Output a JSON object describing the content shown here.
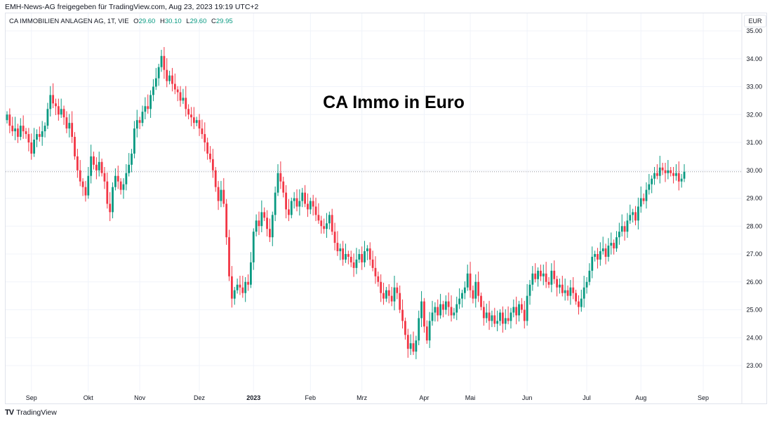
{
  "header": {
    "attribution": "EMH-News-AG freigegeben für TradingView.com, Aug 23, 2023 19:19 UTC+2"
  },
  "legend": {
    "symbol": "CA IMMOBILIEN ANLAGEN AG, 1T, VIE",
    "o_label": "O",
    "o": "29.60",
    "h_label": "H",
    "h": "30.10",
    "l_label": "L",
    "l": "29.60",
    "c_label": "C",
    "c": "29.95"
  },
  "currency": "EUR",
  "footer": {
    "brand": "TradingView",
    "logo": "17"
  },
  "colors": {
    "up": "#089981",
    "down": "#f23645",
    "grid": "#f0f3fa"
  },
  "chart_data": {
    "type": "candlestick",
    "title": "CA Immo in Euro",
    "xlabel": "",
    "ylabel": "",
    "ylim": [
      22,
      35.6
    ],
    "yticks": [
      "23.00",
      "24.00",
      "25.00",
      "26.00",
      "27.00",
      "28.00",
      "29.00",
      "30.00",
      "31.00",
      "32.00",
      "33.00",
      "34.00",
      "35.00"
    ],
    "xticks": [
      {
        "label": "Sep",
        "index": 9
      },
      {
        "label": "Okt",
        "index": 30
      },
      {
        "label": "Nov",
        "index": 49
      },
      {
        "label": "Dez",
        "index": 71
      },
      {
        "label": "2023",
        "index": 91,
        "bold": true
      },
      {
        "label": "Feb",
        "index": 112
      },
      {
        "label": "Mrz",
        "index": 131
      },
      {
        "label": "Apr",
        "index": 154
      },
      {
        "label": "Mai",
        "index": 171
      },
      {
        "label": "Jun",
        "index": 192
      },
      {
        "label": "Jul",
        "index": 214
      },
      {
        "label": "Aug",
        "index": 234
      },
      {
        "label": "Sep",
        "index": 257
      }
    ],
    "last_price": 29.95,
    "first_open": 31.8,
    "closes": [
      32.0,
      31.6,
      31.4,
      31.5,
      31.2,
      31.6,
      31.4,
      31.3,
      31.0,
      30.6,
      31.1,
      31.3,
      31.2,
      31.4,
      31.6,
      32.2,
      32.7,
      32.4,
      32.3,
      32.0,
      32.2,
      31.9,
      31.5,
      31.7,
      31.2,
      30.5,
      30.0,
      29.6,
      29.4,
      29.1,
      29.8,
      30.5,
      30.2,
      30.0,
      30.3,
      29.9,
      29.6,
      28.8,
      28.5,
      29.4,
      29.8,
      29.6,
      29.3,
      29.5,
      29.9,
      30.2,
      30.6,
      31.5,
      31.8,
      31.7,
      32.1,
      32.3,
      32.2,
      32.7,
      33.0,
      33.3,
      33.7,
      34.1,
      33.6,
      33.2,
      33.4,
      33.1,
      32.9,
      32.8,
      32.5,
      32.6,
      32.2,
      32.0,
      31.9,
      31.7,
      31.8,
      31.5,
      31.3,
      31.0,
      30.6,
      30.4,
      30.0,
      29.4,
      28.9,
      29.3,
      28.8,
      27.6,
      26.2,
      25.4,
      25.7,
      25.9,
      25.8,
      25.6,
      26.0,
      25.9,
      26.7,
      27.8,
      28.2,
      28.0,
      28.5,
      28.3,
      27.9,
      27.6,
      28.4,
      29.2,
      29.9,
      29.6,
      29.2,
      28.6,
      28.4,
      28.9,
      29.0,
      28.7,
      28.9,
      29.2,
      28.8,
      28.6,
      28.9,
      28.7,
      28.4,
      28.2,
      28.0,
      27.9,
      28.1,
      28.4,
      27.8,
      27.4,
      27.1,
      27.2,
      26.8,
      27.0,
      26.9,
      26.7,
      26.5,
      26.8,
      27.0,
      26.7,
      27.1,
      27.2,
      26.8,
      26.5,
      26.2,
      26.0,
      25.6,
      25.4,
      25.7,
      25.5,
      25.3,
      25.8,
      25.6,
      25.0,
      24.6,
      24.1,
      23.6,
      23.8,
      23.5,
      23.9,
      24.7,
      25.3,
      24.4,
      23.9,
      24.6,
      24.9,
      25.1,
      24.8,
      25.2,
      25.0,
      25.3,
      25.1,
      24.8,
      24.9,
      25.2,
      25.4,
      25.6,
      25.8,
      26.3,
      25.7,
      25.4,
      26.0,
      25.5,
      25.1,
      24.7,
      24.9,
      24.6,
      24.8,
      24.5,
      24.6,
      24.9,
      24.5,
      24.7,
      24.6,
      24.9,
      25.1,
      24.8,
      25.2,
      25.0,
      24.6,
      25.5,
      25.9,
      26.3,
      26.1,
      26.4,
      26.2,
      26.3,
      26.0,
      25.9,
      26.4,
      26.1,
      25.8,
      25.9,
      25.6,
      25.7,
      25.5,
      25.8,
      25.6,
      25.3,
      25.1,
      25.4,
      25.8,
      26.0,
      26.4,
      26.9,
      27.0,
      26.8,
      27.1,
      27.2,
      26.9,
      27.3,
      27.4,
      27.2,
      27.6,
      27.8,
      28.0,
      27.8,
      28.2,
      28.4,
      28.5,
      28.2,
      28.7,
      29.0,
      28.9,
      29.3,
      29.5,
      29.7,
      29.9,
      29.8,
      30.1,
      30.0,
      29.9,
      30.0,
      29.9,
      29.8,
      29.9,
      29.6,
      29.7,
      29.95
    ]
  }
}
